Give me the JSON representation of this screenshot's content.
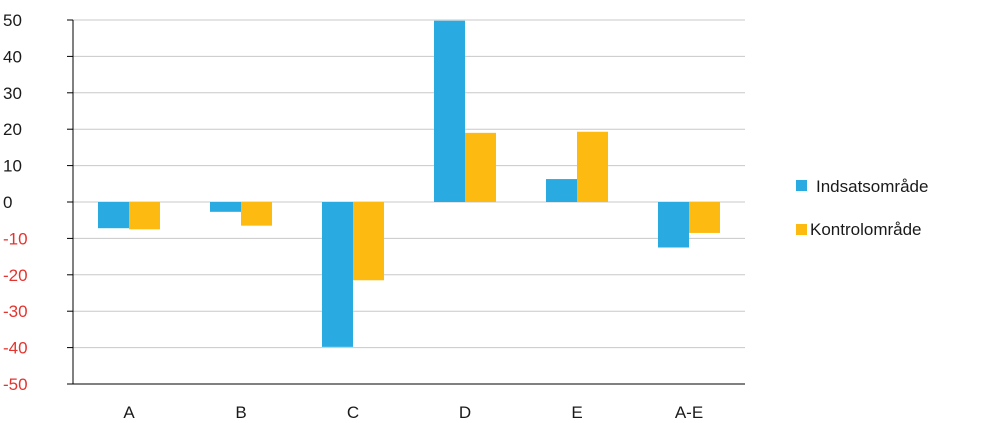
{
  "chart_data": {
    "type": "bar",
    "categories": [
      "A",
      "B",
      "C",
      "D",
      "E",
      "A-E"
    ],
    "series": [
      {
        "name": "Indsatsområde",
        "values": [
          -7.2,
          -2.7,
          -39.8,
          49.8,
          6.3,
          -12.5
        ]
      },
      {
        "name": "Kontrolområde",
        "values": [
          -7.5,
          -6.5,
          -21.5,
          19.0,
          19.3,
          -8.5
        ]
      }
    ],
    "yticks": [
      50,
      40,
      30,
      20,
      10,
      0,
      -10,
      -20,
      -30,
      -40,
      -50
    ],
    "ylim": [
      -50,
      50
    ],
    "grid": true,
    "legend": "right",
    "colors": {
      "series": [
        "#29abe2",
        "#fdbb12"
      ],
      "positive_tick": "#1a1a1a",
      "negative_tick": "#e3342f",
      "grid": "#c8c8c8",
      "axis": "#000000"
    }
  }
}
